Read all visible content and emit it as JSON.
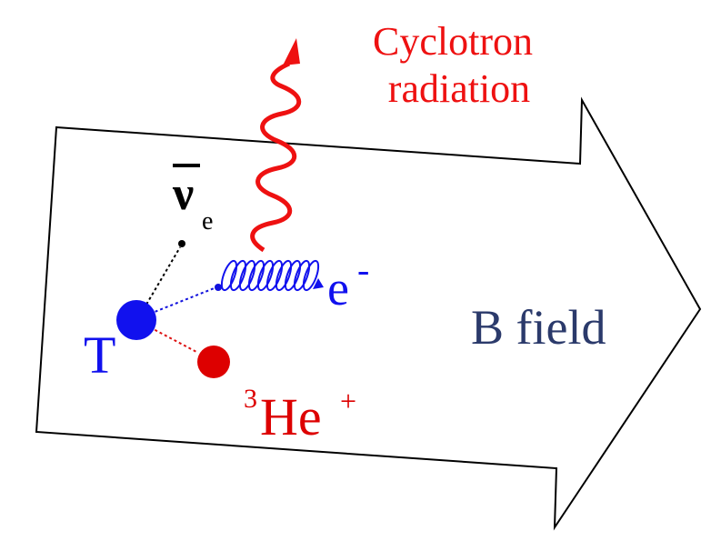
{
  "radiation_label": {
    "line1": "Cyclotron",
    "line2": "radiation"
  },
  "neutrino": {
    "symbol": "ν",
    "subscript": "e"
  },
  "electron": {
    "symbol": "e",
    "superscript": "-"
  },
  "tritium": "T",
  "helium": {
    "mass_number": "3",
    "symbol": "He",
    "charge": "+"
  },
  "field_label": "B field"
}
